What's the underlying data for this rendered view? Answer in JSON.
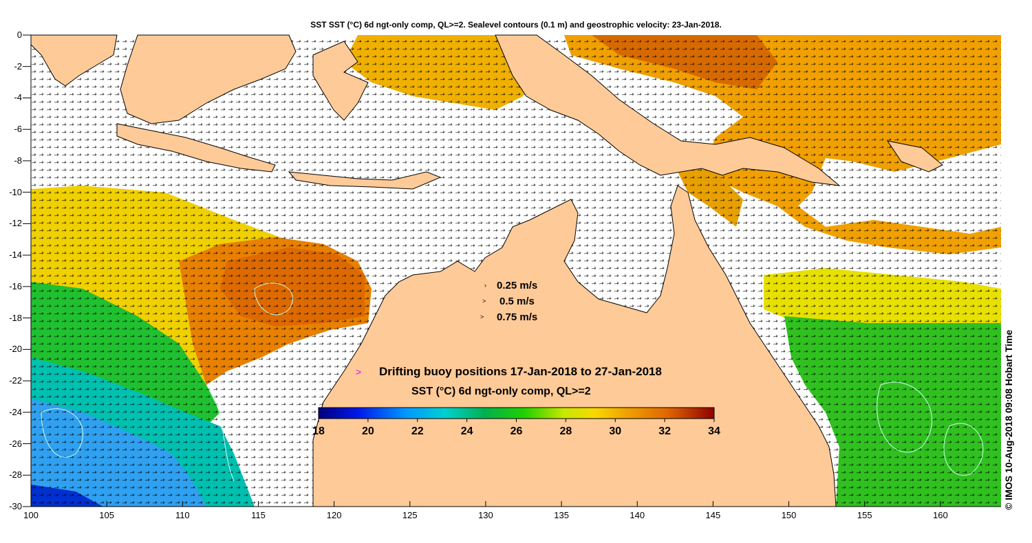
{
  "title": "SST SST (°C) 6d ngt-only comp, QL>=2. Sealevel contours (0.1 m) and geostrophic velocity: 23-Jan-2018.",
  "axes": {
    "y_ticks": [
      "0",
      "-2",
      "-4",
      "-6",
      "-8",
      "-10",
      "-12",
      "-14",
      "-16",
      "-18",
      "-20",
      "-22",
      "-24",
      "-26",
      "-28",
      "-30"
    ],
    "x_ticks": [
      "100",
      "105",
      "110",
      "115",
      "120",
      "125",
      "130",
      "135",
      "140",
      "145",
      "150",
      "155",
      "160"
    ],
    "lon_range": [
      100,
      164
    ],
    "lat_range": [
      -30,
      0
    ]
  },
  "velocity_legend": [
    {
      "glyph": "›",
      "label": "0.25 m/s"
    },
    {
      "glyph": ">",
      "label": "0.5 m/s"
    },
    {
      "glyph": ">",
      "label": "0.75 m/s"
    }
  ],
  "buoy_legend": {
    "glyph": ">",
    "label": "Drifting buoy positions 17-Jan-2018 to 27-Jan-2018",
    "color": "#e000e0"
  },
  "colorbar": {
    "title": "SST (°C) 6d ngt-only comp, QL>=2",
    "ticks": [
      "18",
      "20",
      "22",
      "24",
      "26",
      "28",
      "30",
      "32",
      "34"
    ],
    "range": [
      18,
      34
    ],
    "colors": [
      "#00007f",
      "#0000cc",
      "#0050ff",
      "#00a8ff",
      "#00d0d0",
      "#00c060",
      "#00c800",
      "#a0e000",
      "#f0e000",
      "#f0a000",
      "#e07000",
      "#c03000",
      "#800000"
    ]
  },
  "credit": "© IMOS 10-Aug-2018 09:08 Hobart Time",
  "colors": {
    "land": "#fdca98",
    "no_data": "#ffffff",
    "contour": "#c8ffe8",
    "coast": "#000000"
  }
}
